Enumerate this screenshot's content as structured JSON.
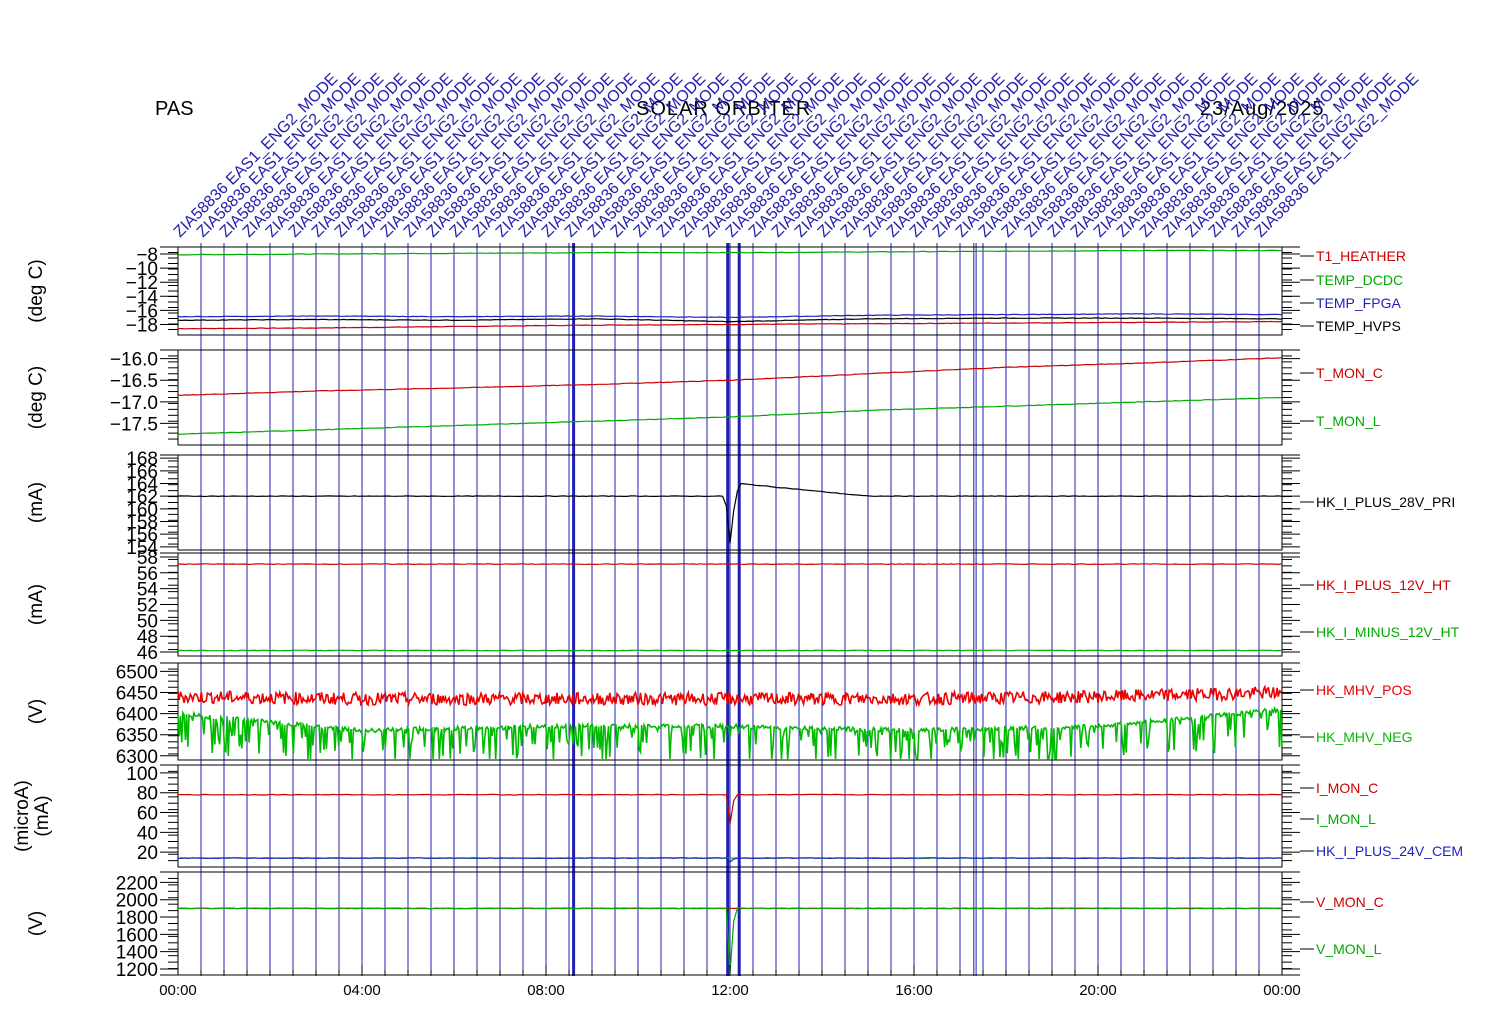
{
  "header": {
    "instrument": "PAS",
    "mission": "SOLAR  ORBITER",
    "date": "23/Aug/2025"
  },
  "chart_data": [
    {
      "type": "line",
      "ylabel": "(deg C)",
      "ylim": [
        -19.5,
        -7
      ],
      "ytick_labels": [
        "-8",
        "-10",
        "-12",
        "-14",
        "-16",
        "-18"
      ],
      "series": [
        {
          "name": "T1_HEATHER",
          "color": "#cc0000",
          "x": [
            0,
            3,
            6,
            9,
            12,
            15,
            18,
            21,
            24
          ],
          "values": [
            -18.6,
            -18.5,
            -18.3,
            -18.1,
            -18.0,
            -17.9,
            -17.8,
            -17.7,
            -17.6
          ]
        },
        {
          "name": "TEMP_DCDC",
          "color": "#00aa00",
          "x": [
            0,
            3,
            6,
            9,
            12,
            15,
            18,
            21,
            24
          ],
          "values": [
            -8.1,
            -8.0,
            -7.9,
            -7.8,
            -7.8,
            -7.7,
            -7.6,
            -7.5,
            -7.5
          ]
        },
        {
          "name": "TEMP_FPGA",
          "color": "#2020c0",
          "x": [
            0,
            3,
            6,
            9,
            12,
            15,
            18,
            21,
            24
          ],
          "values": [
            -16.9,
            -16.8,
            -16.9,
            -16.8,
            -17.0,
            -16.7,
            -16.6,
            -16.5,
            -16.6
          ]
        },
        {
          "name": "TEMP_HVPS",
          "color": "#000000",
          "x": [
            0,
            3,
            6,
            9,
            12,
            15,
            18,
            21,
            24
          ],
          "values": [
            -17.4,
            -17.3,
            -17.4,
            -17.2,
            -17.6,
            -17.2,
            -17.1,
            -17.1,
            -17.2
          ]
        }
      ]
    },
    {
      "type": "line",
      "ylabel": "(deg C)",
      "ylim": [
        -18.0,
        -15.8
      ],
      "ytick_labels": [
        "-16.0",
        "-16.5",
        "-17.0",
        "-17.5"
      ],
      "series": [
        {
          "name": "T_MON_C",
          "color": "#cc0000",
          "x": [
            0,
            3,
            6,
            9,
            12,
            15,
            18,
            21,
            24
          ],
          "values": [
            -16.85,
            -16.75,
            -16.68,
            -16.6,
            -16.5,
            -16.35,
            -16.2,
            -16.1,
            -15.98
          ]
        },
        {
          "name": "T_MON_L",
          "color": "#00aa00",
          "x": [
            0,
            3,
            6,
            9,
            12,
            15,
            18,
            21,
            24
          ],
          "values": [
            -17.75,
            -17.65,
            -17.55,
            -17.45,
            -17.35,
            -17.2,
            -17.1,
            -17.0,
            -16.9
          ]
        }
      ]
    },
    {
      "type": "line",
      "ylabel": "(mA)",
      "ylim": [
        153.5,
        168.5
      ],
      "ytick_labels": [
        "168",
        "166",
        "164",
        "162",
        "160",
        "158",
        "156",
        "154"
      ],
      "series": [
        {
          "name": "HK_I_PLUS_28V_PRI",
          "color": "#000000",
          "x": [
            0,
            3,
            6,
            9,
            11.9,
            12.0,
            12.1,
            12.2,
            15,
            18,
            21,
            24
          ],
          "values": [
            162.0,
            162.0,
            162.0,
            162.0,
            162.0,
            154.5,
            161.0,
            164.0,
            162.0,
            162.0,
            162.0,
            162.0
          ]
        }
      ]
    },
    {
      "type": "line",
      "ylabel": "(mA)",
      "ylim": [
        45.5,
        58.5
      ],
      "ytick_labels": [
        "58",
        "56",
        "54",
        "52",
        "50",
        "48",
        "46"
      ],
      "series": [
        {
          "name": "HK_I_PLUS_12V_HT",
          "color": "#cc0000",
          "x": [
            0,
            3,
            6,
            9,
            12,
            15,
            18,
            21,
            24
          ],
          "values": [
            57.1,
            57.1,
            57.1,
            57.1,
            57.1,
            57.1,
            57.1,
            57.1,
            57.1
          ]
        },
        {
          "name": "HK_I_MINUS_12V_HT",
          "color": "#00aa00",
          "x": [
            0,
            3,
            6,
            9,
            12,
            15,
            18,
            21,
            24
          ],
          "values": [
            46.2,
            46.2,
            46.2,
            46.2,
            46.2,
            46.2,
            46.2,
            46.2,
            46.2
          ]
        }
      ]
    },
    {
      "type": "line",
      "ylabel": "(V)",
      "ylim": [
        6290,
        6520
      ],
      "ytick_labels": [
        "6500",
        "6450",
        "6400",
        "6350",
        "6300"
      ],
      "series": [
        {
          "name": "HK_MHV_POS",
          "color": "#ee0000",
          "x": [
            0,
            4,
            8,
            12,
            16,
            20,
            24
          ],
          "values": [
            6440,
            6435,
            6435,
            6435,
            6435,
            6440,
            6450
          ]
        },
        {
          "name": "HK_MHV_NEG",
          "color": "#00bb00",
          "x": [
            0,
            4,
            8,
            12,
            16,
            20,
            24
          ],
          "values": [
            6400,
            6360,
            6370,
            6370,
            6360,
            6370,
            6410
          ]
        }
      ]
    },
    {
      "type": "line",
      "ylabel": "(microA)",
      "ylabel2": "(mA)",
      "ylim": [
        5,
        108
      ],
      "ytick_labels": [
        "100",
        "80",
        "60",
        "40",
        "20"
      ],
      "series": [
        {
          "name": "I_MON_C",
          "color": "#cc0000",
          "x": [
            0,
            6,
            11.95,
            12.0,
            12.1,
            18,
            24
          ],
          "values": [
            78,
            78,
            78,
            48,
            78,
            78,
            78
          ]
        },
        {
          "name": "I_MON_L",
          "color": "#00aa00",
          "x": [
            0,
            12,
            24
          ],
          "values": [
            14,
            14,
            14
          ]
        },
        {
          "name": "HK_I_PLUS_24V_CEM",
          "color": "#2020c0",
          "x": [
            0,
            11.95,
            12.0,
            12.1,
            24
          ],
          "values": [
            14,
            14,
            10,
            14,
            14
          ]
        }
      ]
    },
    {
      "type": "line",
      "ylabel": "(V)",
      "ylim": [
        1130,
        2320
      ],
      "ytick_labels": [
        "2200",
        "2000",
        "1800",
        "1600",
        "1400",
        "1200"
      ],
      "series": [
        {
          "name": "V_MON_C",
          "color": "#cc0000",
          "x": [
            0,
            6,
            12,
            18,
            24
          ],
          "values": [
            1900,
            1900,
            1900,
            1900,
            1900
          ]
        },
        {
          "name": "V_MON_L",
          "color": "#00aa00",
          "x": [
            0,
            6,
            11.95,
            12.0,
            12.1,
            18,
            24
          ],
          "values": [
            1900,
            1900,
            1900,
            1150,
            1900,
            1900,
            1900
          ]
        }
      ]
    }
  ],
  "xaxis": {
    "range_hours": [
      0,
      24
    ],
    "tick_labels": [
      "00:00",
      "04:00",
      "08:00",
      "12:00",
      "16:00",
      "20:00",
      "00:00"
    ],
    "tick_hours": [
      0,
      4,
      8,
      12,
      16,
      20,
      24
    ]
  },
  "events": {
    "label": "ZIA58836   EAS1_ENG2_MODE",
    "color": "#2020b0",
    "hours": [
      0.5,
      1.0,
      1.5,
      2.0,
      2.5,
      3.0,
      3.5,
      4.0,
      4.5,
      5.0,
      5.5,
      6.0,
      6.5,
      7.0,
      7.5,
      8.0,
      8.5,
      9.0,
      9.5,
      10.0,
      10.5,
      11.0,
      11.5,
      12.0,
      12.5,
      13.0,
      13.5,
      14.0,
      14.5,
      15.0,
      15.5,
      16.0,
      16.5,
      17.0,
      17.5,
      18.0,
      18.5,
      19.0,
      19.5,
      20.0,
      20.5,
      21.0,
      21.5,
      22.0,
      22.5,
      23.0,
      23.5
    ],
    "bold_hours": [
      8.6,
      11.95,
      12.2
    ],
    "extra_hours": [
      17.3,
      17.35
    ]
  }
}
